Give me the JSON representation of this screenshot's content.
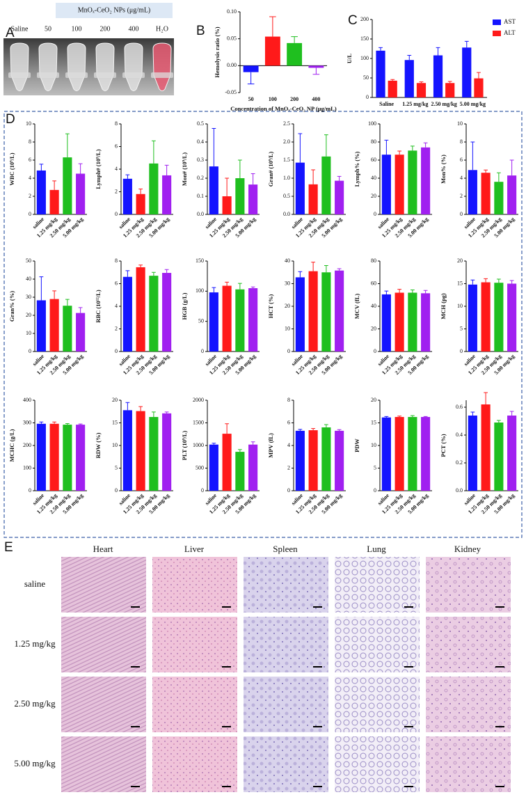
{
  "panel_labels": [
    "A",
    "B",
    "C",
    "D",
    "E"
  ],
  "panel_a": {
    "header": "MnOₓ-CeO₂ NPs (μg/mL)",
    "labels": [
      "Saline",
      "50",
      "100",
      "200",
      "400",
      "H₂O"
    ]
  },
  "chart_data": [
    {
      "type": "bar",
      "y_label": "Hemolysis ratio (%)",
      "x_label": "Concentration of MnOₓ-CeO₂ NP (μg/mL)",
      "categories": [
        "50",
        "100",
        "200",
        "400"
      ],
      "values": [
        -0.012,
        0.054,
        0.042,
        -0.004
      ],
      "errors": [
        0.022,
        0.037,
        0.012,
        0.012
      ],
      "colors": [
        "#1414ff",
        "#ff1a1a",
        "#1fbf1f",
        "#a020f0"
      ],
      "ylim": [
        -0.05,
        0.1
      ],
      "yticks": [
        -0.05,
        {
          "value": 0,
          "label": "0.00"
        },
        0.05,
        {
          "value": 0.1,
          "label": "0.10"
        }
      ]
    },
    {
      "type": "bar",
      "y_label": "U/L",
      "categories": [
        "Saline",
        "1.25 mg/kg",
        "2.50 mg/kg",
        "5.00 mg/kg"
      ],
      "series": [
        {
          "name": "AST",
          "color": "#1414ff",
          "values": [
            120,
            96,
            108,
            128
          ],
          "errors": [
            8,
            12,
            20,
            16
          ]
        },
        {
          "name": "ALT",
          "color": "#ff1a1a",
          "values": [
            43,
            37,
            37,
            49
          ],
          "errors": [
            3,
            3,
            4,
            15
          ]
        }
      ],
      "ylim": [
        0,
        200
      ],
      "yticks": [
        0,
        50,
        100,
        150,
        200
      ],
      "legend": "top-right"
    },
    {
      "type": "bar",
      "y_label": "WBC (10⁹/L)",
      "categories": [
        "saline",
        "1.25 mg/kg",
        "2.50 mg/kg",
        "5.00 mg/kg"
      ],
      "values": [
        4.85,
        2.7,
        6.3,
        4.5
      ],
      "errors": [
        0.7,
        1.0,
        2.6,
        1.1
      ],
      "colors": [
        "#1414ff",
        "#ff1a1a",
        "#1fbf1f",
        "#a020f0"
      ],
      "ylim": [
        0,
        10
      ],
      "yticks": [
        0,
        2,
        4,
        6,
        8,
        10
      ]
    },
    {
      "type": "bar",
      "y_label": "Lymph# (10⁹/L)",
      "categories": [
        "saline",
        "1.25 mg/kg",
        "2.50 mg/kg",
        "5.00 mg/kg"
      ],
      "values": [
        3.15,
        1.8,
        4.5,
        3.45
      ],
      "errors": [
        0.35,
        0.45,
        2.0,
        0.9
      ],
      "colors": [
        "#1414ff",
        "#ff1a1a",
        "#1fbf1f",
        "#a020f0"
      ],
      "ylim": [
        0,
        8
      ],
      "yticks": [
        0,
        2,
        4,
        6,
        8
      ]
    },
    {
      "type": "bar",
      "y_label": "Mon# (10⁹/L)",
      "categories": [
        "saline",
        "1.25 mg/kg",
        "2.50 mg/kg",
        "5.00 mg/kg"
      ],
      "values": [
        0.265,
        0.1,
        0.2,
        0.165
      ],
      "errors": [
        0.21,
        0.1,
        0.1,
        0.06
      ],
      "colors": [
        "#1414ff",
        "#ff1a1a",
        "#1fbf1f",
        "#a020f0"
      ],
      "ylim": [
        0,
        0.5
      ],
      "yticks": [
        {
          "value": 0,
          "label": "0.0"
        },
        0.1,
        0.2,
        0.3,
        0.4,
        0.5
      ]
    },
    {
      "type": "bar",
      "y_label": "Gran# (10⁹/L)",
      "categories": [
        "saline",
        "1.25 mg/kg",
        "2.50 mg/kg",
        "5.00 mg/kg"
      ],
      "values": [
        1.43,
        0.83,
        1.6,
        0.93
      ],
      "errors": [
        0.8,
        0.4,
        0.6,
        0.12
      ],
      "colors": [
        "#1414ff",
        "#ff1a1a",
        "#1fbf1f",
        "#a020f0"
      ],
      "ylim": [
        0,
        2.5
      ],
      "yticks": [
        {
          "value": 0,
          "label": "0.0"
        },
        0.5,
        {
          "value": 1,
          "label": "1.0"
        },
        1.5,
        {
          "value": 2,
          "label": "2.0"
        },
        2.5
      ]
    },
    {
      "type": "bar",
      "y_label": "Lymph% (%)",
      "categories": [
        "saline",
        "1.25 mg/kg",
        "2.50 mg/kg",
        "5.00 mg/kg"
      ],
      "values": [
        66,
        66,
        70.5,
        74
      ],
      "errors": [
        16,
        4,
        5,
        5
      ],
      "colors": [
        "#1414ff",
        "#ff1a1a",
        "#1fbf1f",
        "#a020f0"
      ],
      "ylim": [
        0,
        100
      ],
      "yticks": [
        0,
        20,
        40,
        60,
        80,
        100
      ]
    },
    {
      "type": "bar",
      "y_label": "Mon% (%)",
      "categories": [
        "saline",
        "1.25 mg/kg",
        "2.50 mg/kg",
        "5.00 mg/kg"
      ],
      "values": [
        4.9,
        4.6,
        3.6,
        4.3
      ],
      "errors": [
        3.1,
        0.3,
        1.0,
        1.7
      ],
      "colors": [
        "#1414ff",
        "#ff1a1a",
        "#1fbf1f",
        "#a020f0"
      ],
      "ylim": [
        0,
        10
      ],
      "yticks": [
        0,
        2,
        4,
        6,
        8,
        10
      ]
    },
    {
      "type": "bar",
      "y_label": "Gran% (%)",
      "categories": [
        "saline",
        "1.25 mg/kg",
        "2.50 mg/kg",
        "5.00 mg/kg"
      ],
      "values": [
        28.3,
        29,
        25.3,
        21.3
      ],
      "errors": [
        13,
        4.5,
        3.5,
        3
      ],
      "colors": [
        "#1414ff",
        "#ff1a1a",
        "#1fbf1f",
        "#a020f0"
      ],
      "ylim": [
        0,
        50
      ],
      "yticks": [
        0,
        10,
        20,
        30,
        40,
        50
      ]
    },
    {
      "type": "bar",
      "y_label": "RBC (10¹²/L)",
      "categories": [
        "saline",
        "1.25 mg/kg",
        "2.50 mg/kg",
        "5.00 mg/kg"
      ],
      "values": [
        6.6,
        7.45,
        6.7,
        6.95
      ],
      "errors": [
        0.55,
        0.2,
        0.3,
        0.3
      ],
      "colors": [
        "#1414ff",
        "#ff1a1a",
        "#1fbf1f",
        "#a020f0"
      ],
      "ylim": [
        0,
        8
      ],
      "yticks": [
        0,
        2,
        4,
        6,
        8
      ]
    },
    {
      "type": "bar",
      "y_label": "HGB (g/L)",
      "categories": [
        "saline",
        "1.25 mg/kg",
        "2.50 mg/kg",
        "5.00 mg/kg"
      ],
      "values": [
        98,
        109,
        103,
        105
      ],
      "errors": [
        8,
        6,
        10,
        2
      ],
      "colors": [
        "#1414ff",
        "#ff1a1a",
        "#1fbf1f",
        "#a020f0"
      ],
      "ylim": [
        0,
        150
      ],
      "yticks": [
        0,
        50,
        100,
        150
      ]
    },
    {
      "type": "bar",
      "y_label": "HCT (%)",
      "categories": [
        "saline",
        "1.25 mg/kg",
        "2.50 mg/kg",
        "5.00 mg/kg"
      ],
      "values": [
        32.8,
        35.5,
        35,
        35.8
      ],
      "errors": [
        2.5,
        4,
        3,
        0.8
      ],
      "colors": [
        "#1414ff",
        "#ff1a1a",
        "#1fbf1f",
        "#a020f0"
      ],
      "ylim": [
        0,
        40
      ],
      "yticks": [
        0,
        10,
        20,
        30,
        40
      ]
    },
    {
      "type": "bar",
      "y_label": "MCV (fL)",
      "categories": [
        "saline",
        "1.25 mg/kg",
        "2.50 mg/kg",
        "5.00 mg/kg"
      ],
      "values": [
        50.5,
        52,
        52,
        51.5
      ],
      "errors": [
        3,
        3,
        2.5,
        2.5
      ],
      "colors": [
        "#1414ff",
        "#ff1a1a",
        "#1fbf1f",
        "#a020f0"
      ],
      "ylim": [
        0,
        80
      ],
      "yticks": [
        0,
        20,
        40,
        60,
        80
      ]
    },
    {
      "type": "bar",
      "y_label": "MCH (pg)",
      "categories": [
        "saline",
        "1.25 mg/kg",
        "2.50 mg/kg",
        "5.00 mg/kg"
      ],
      "values": [
        14.8,
        15.3,
        15.2,
        15
      ],
      "errors": [
        1,
        0.8,
        0.8,
        0.7
      ],
      "colors": [
        "#1414ff",
        "#ff1a1a",
        "#1fbf1f",
        "#a020f0"
      ],
      "ylim": [
        0,
        20
      ],
      "yticks": [
        0,
        5,
        10,
        15,
        20
      ]
    },
    {
      "type": "bar",
      "y_label": "MCHC (g/L)",
      "categories": [
        "saline",
        "1.25 mg/kg",
        "2.50 mg/kg",
        "5.00 mg/kg"
      ],
      "values": [
        296,
        296,
        292,
        292
      ],
      "errors": [
        8,
        8,
        5,
        3
      ],
      "colors": [
        "#1414ff",
        "#ff1a1a",
        "#1fbf1f",
        "#a020f0"
      ],
      "ylim": [
        0,
        400
      ],
      "yticks": [
        0,
        100,
        200,
        300,
        400
      ]
    },
    {
      "type": "bar",
      "y_label": "RDW (%)",
      "categories": [
        "saline",
        "1.25 mg/kg",
        "2.50 mg/kg",
        "5.00 mg/kg"
      ],
      "values": [
        17.8,
        17.6,
        16.3,
        17.1
      ],
      "errors": [
        1.7,
        1,
        1.1,
        0.3
      ],
      "colors": [
        "#1414ff",
        "#ff1a1a",
        "#1fbf1f",
        "#a020f0"
      ],
      "ylim": [
        0,
        20
      ],
      "yticks": [
        0,
        5,
        10,
        15,
        20
      ]
    },
    {
      "type": "bar",
      "y_label": "PLT (10⁹/L)",
      "categories": [
        "saline",
        "1.25 mg/kg",
        "2.50 mg/kg",
        "5.00 mg/kg"
      ],
      "values": [
        1020,
        1260,
        860,
        1020
      ],
      "errors": [
        30,
        220,
        50,
        60
      ],
      "colors": [
        "#1414ff",
        "#ff1a1a",
        "#1fbf1f",
        "#a020f0"
      ],
      "ylim": [
        0,
        2000
      ],
      "yticks": [
        0,
        500,
        1000,
        1500,
        2000
      ]
    },
    {
      "type": "bar",
      "y_label": "MPV (fL)",
      "categories": [
        "saline",
        "1.25 mg/kg",
        "2.50 mg/kg",
        "5.00 mg/kg"
      ],
      "values": [
        5.3,
        5.35,
        5.6,
        5.3
      ],
      "errors": [
        0.12,
        0.15,
        0.25,
        0.1
      ],
      "colors": [
        "#1414ff",
        "#ff1a1a",
        "#1fbf1f",
        "#a020f0"
      ],
      "ylim": [
        0,
        8
      ],
      "yticks": [
        0,
        2,
        4,
        6,
        8
      ]
    },
    {
      "type": "bar",
      "y_label": "PDW",
      "categories": [
        "saline",
        "1.25 mg/kg",
        "2.50 mg/kg",
        "5.00 mg/kg"
      ],
      "values": [
        16.2,
        16.3,
        16.3,
        16.3
      ],
      "errors": [
        0.2,
        0.2,
        0.3,
        0.1
      ],
      "colors": [
        "#1414ff",
        "#ff1a1a",
        "#1fbf1f",
        "#a020f0"
      ],
      "ylim": [
        0,
        20
      ],
      "yticks": [
        0,
        5,
        10,
        15,
        20
      ]
    },
    {
      "type": "bar",
      "y_label": "PCT (%)",
      "categories": [
        "saline",
        "1.25 mg/kg",
        "2.50 mg/kg",
        "5.00 mg/kg"
      ],
      "values": [
        0.54,
        0.62,
        0.49,
        0.54
      ],
      "errors": [
        0.025,
        0.085,
        0.015,
        0.03
      ],
      "colors": [
        "#1414ff",
        "#ff1a1a",
        "#1fbf1f",
        "#a020f0"
      ],
      "ylim": [
        0,
        0.65
      ],
      "yticks": [
        {
          "value": 0,
          "label": "0.0"
        },
        0.2,
        0.4,
        0.6
      ]
    }
  ],
  "panel_e": {
    "columns": [
      "Heart",
      "Liver",
      "Spleen",
      "Lung",
      "Kidney"
    ],
    "rows": [
      "saline",
      "1.25 mg/kg",
      "2.50 mg/kg",
      "5.00 mg/kg"
    ]
  }
}
